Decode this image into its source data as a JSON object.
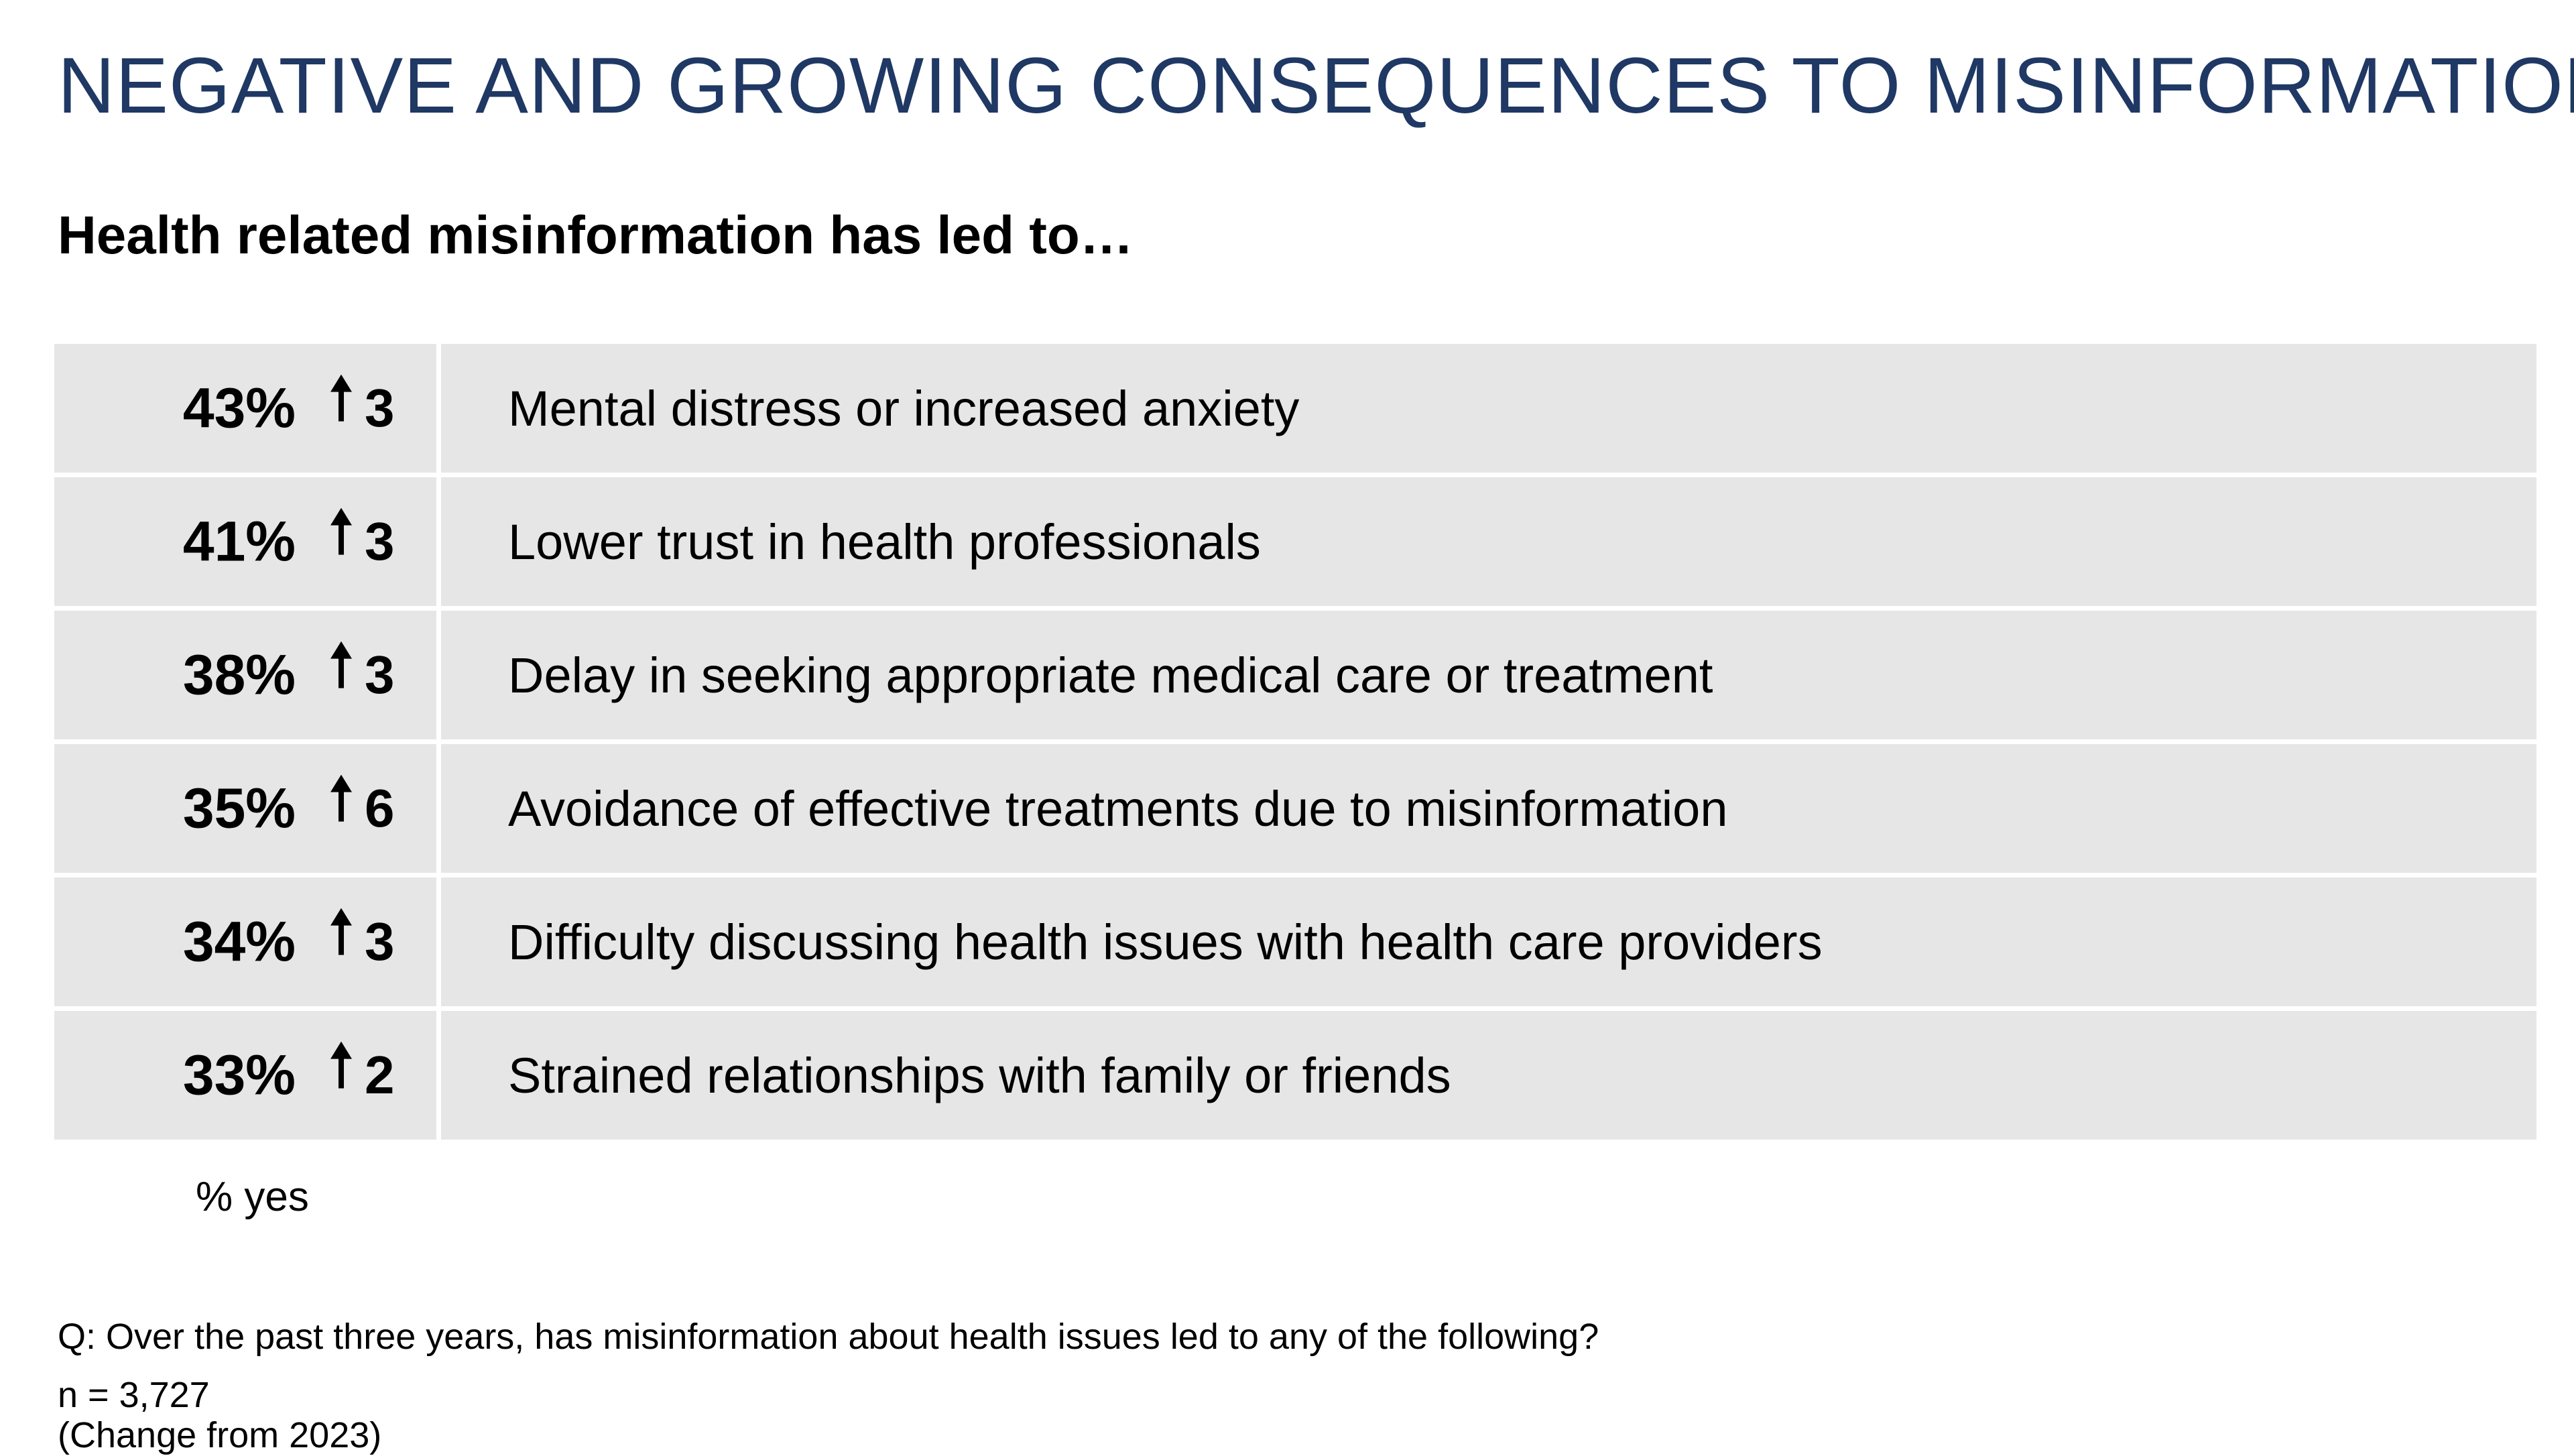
{
  "title": "NEGATIVE AND GROWING CONSEQUENCES TO MISINFORMATION",
  "subtitle": "Health related misinformation has led to…",
  "colors": {
    "title": "#1f3864",
    "row_background": "#e7e6e6",
    "text": "#000000"
  },
  "rows": [
    {
      "percent": "43%",
      "change_icon": "arrow-up-icon",
      "change": "3",
      "label": "Mental distress or increased anxiety"
    },
    {
      "percent": "41%",
      "change_icon": "arrow-up-icon",
      "change": "3",
      "label": "Lower trust in health professionals"
    },
    {
      "percent": "38%",
      "change_icon": "arrow-up-icon",
      "change": "3",
      "label": "Delay in seeking appropriate medical care or treatment"
    },
    {
      "percent": "35%",
      "change_icon": "arrow-up-icon",
      "change": "6",
      "label": "Avoidance of effective treatments due to misinformation"
    },
    {
      "percent": "34%",
      "change_icon": "arrow-up-icon",
      "change": "3",
      "label": "Difficulty discussing health issues with health care providers"
    },
    {
      "percent": "33%",
      "change_icon": "arrow-up-icon",
      "change": "2",
      "label": "Strained relationships with family or friends"
    }
  ],
  "value_caption": "% yes",
  "footnotes": {
    "question": "Q: Over the past three years, has misinformation about health issues led to any of the following?",
    "sample": "n = 3,727",
    "change_note": "(Change from 2023)"
  }
}
